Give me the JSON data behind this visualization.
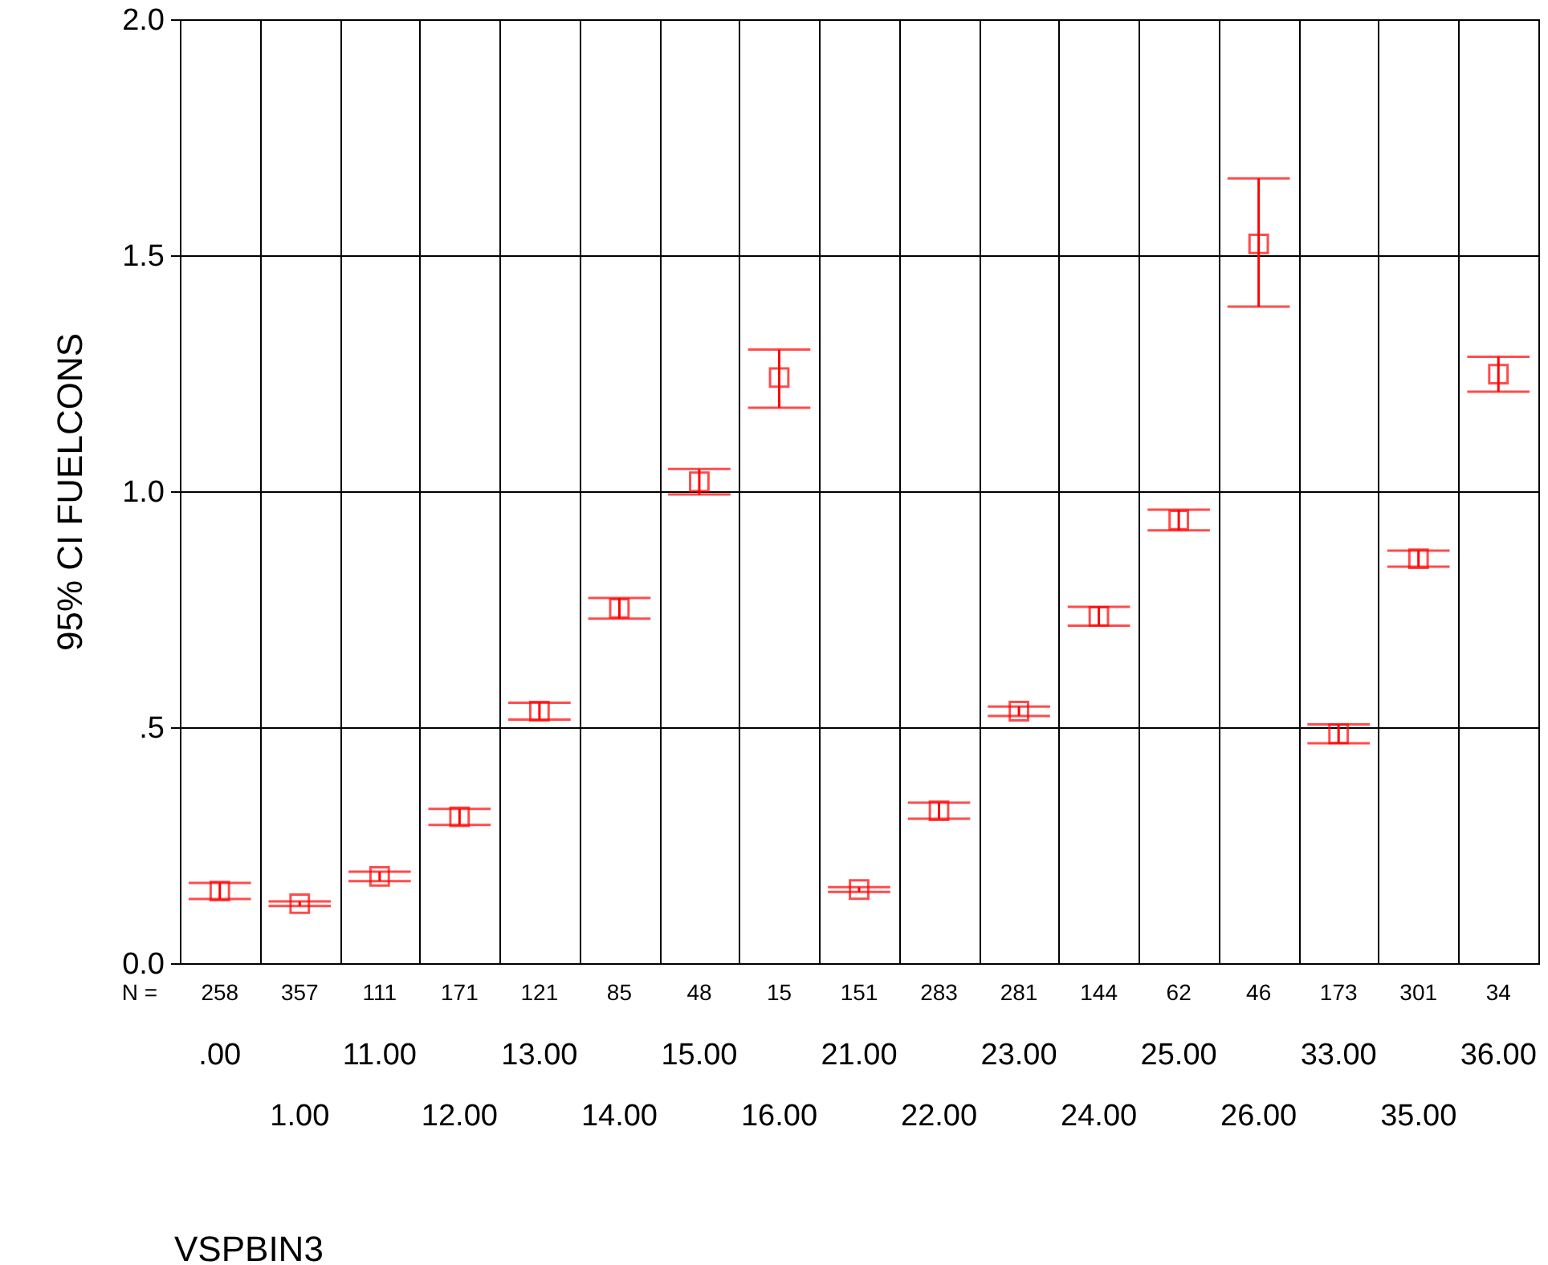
{
  "chart_data": {
    "type": "scatter",
    "xlabel": "VSPBIN3",
    "ylabel": "95% CI FUELCONS",
    "categories": [
      ".00",
      "1.00",
      "11.00",
      "12.00",
      "13.00",
      "14.00",
      "15.00",
      "16.00",
      "21.00",
      "22.00",
      "23.00",
      "24.00",
      "25.00",
      "26.00",
      "33.00",
      "35.00",
      "36.00"
    ],
    "series": [
      {
        "color": "#ff0000",
        "values": [
          0.153,
          0.126,
          0.184,
          0.31,
          0.534,
          0.752,
          1.02,
          1.241,
          0.156,
          0.323,
          0.534,
          0.735,
          0.939,
          1.524,
          0.486,
          0.857,
          1.248
        ],
        "errors": [
          [
            0.136,
            0.17
          ],
          [
            0.121,
            0.131
          ],
          [
            0.174,
            0.194
          ],
          [
            0.293,
            0.327
          ],
          [
            0.516,
            0.552
          ],
          [
            0.73,
            0.774
          ],
          [
            0.993,
            1.047
          ],
          [
            1.177,
            1.3
          ],
          [
            0.151,
            0.161
          ],
          [
            0.306,
            0.34
          ],
          [
            0.524,
            0.544
          ],
          [
            0.715,
            0.755
          ],
          [
            0.917,
            0.961
          ],
          [
            1.391,
            1.663
          ],
          [
            0.466,
            0.506
          ],
          [
            0.84,
            0.874
          ],
          [
            1.211,
            1.285
          ]
        ]
      }
    ],
    "ylim": [
      0,
      2
    ],
    "yticks": [
      {
        "value": 0,
        "label": "0.0"
      },
      {
        "value": 0.5,
        "label": ".5"
      },
      {
        "value": 1,
        "label": "1.0"
      },
      {
        "value": 1.5,
        "label": "1.5"
      },
      {
        "value": 2,
        "label": "2.0"
      }
    ],
    "grid": true,
    "marker": "square",
    "annotations": [
      "N =",
      "258",
      "357",
      "111",
      "171",
      "121",
      "85",
      "48",
      "15",
      "151",
      "283",
      "281",
      "144",
      "62",
      "46",
      "173",
      "301",
      "34"
    ]
  }
}
